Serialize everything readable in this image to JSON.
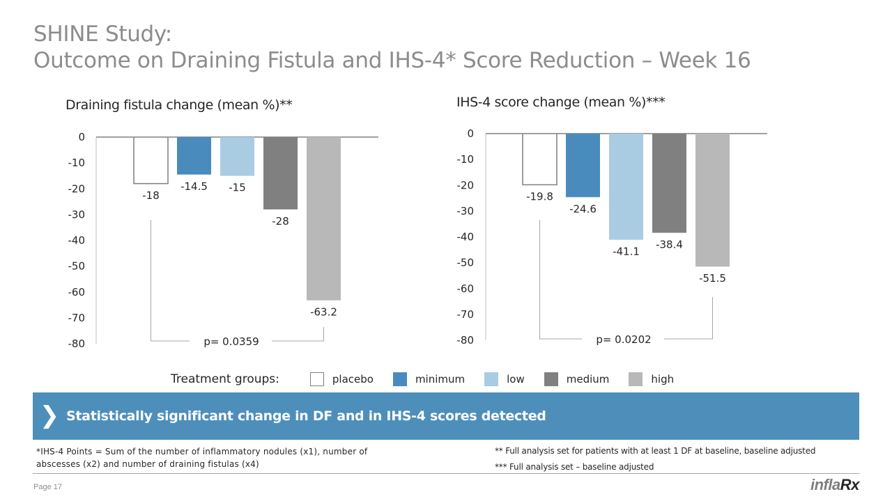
{
  "slide": {
    "title_line1": "SHINE Study:",
    "title_line2": "Outcome on Draining Fistula and IHS-4* Score Reduction – Week 16",
    "page_label": "Page 17",
    "logo_left": "infla",
    "logo_right": "Rx"
  },
  "colors": {
    "placebo_fill": "#ffffff",
    "placebo_stroke": "#7f7f7f",
    "minimum": "#4a8bbd",
    "low": "#a9cce3",
    "medium": "#808080",
    "high": "#b8b8b8",
    "banner": "#4d8fba"
  },
  "legend": {
    "title": "Treatment groups:",
    "items": [
      {
        "label": "placebo",
        "key": "placebo"
      },
      {
        "label": "minimum",
        "key": "minimum"
      },
      {
        "label": "low",
        "key": "low"
      },
      {
        "label": "medium",
        "key": "medium"
      },
      {
        "label": "high",
        "key": "high"
      }
    ]
  },
  "banner": {
    "icon": "chevron-right-icon",
    "text": "Statistically significant change in DF and in IHS-4  scores detected"
  },
  "footnotes": {
    "left": "*IHS-4 Points = Sum  of the number of inflammatory nodules (x1), number of abscesses (x2) and number of draining fistulas (x4)",
    "right1": "** Full analysis set for patients with at least 1 DF at baseline, baseline adjusted",
    "right2": "*** Full analysis set – baseline adjusted"
  },
  "chart_data": [
    {
      "type": "bar",
      "title": "Draining fistula change (mean %)**",
      "categories": [
        "placebo",
        "minimum",
        "low",
        "medium",
        "high"
      ],
      "values": [
        -18,
        -14.5,
        -15,
        -28,
        -63.2
      ],
      "data_labels": [
        "-18",
        "-14.5",
        "-15",
        "-28",
        "-63.2"
      ],
      "ylim": [
        -80,
        0
      ],
      "yticks": [
        "0",
        "-10",
        "-20",
        "-30",
        "-40",
        "-50",
        "-60",
        "-70",
        "-80"
      ],
      "xlabel": "",
      "ylabel": "",
      "grid": false,
      "annotation": {
        "text": "p= 0.0359",
        "between": [
          "placebo",
          "high"
        ]
      }
    },
    {
      "type": "bar",
      "title": "IHS-4 score change (mean %)***",
      "categories": [
        "placebo",
        "minimum",
        "low",
        "medium",
        "high"
      ],
      "values": [
        -19.8,
        -24.6,
        -41.1,
        -38.4,
        -51.5
      ],
      "data_labels": [
        "-19.8",
        "-24.6",
        "-41.1",
        "-38.4",
        "-51.5"
      ],
      "ylim": [
        -80,
        0
      ],
      "yticks": [
        "0",
        "-10",
        "-20",
        "-30",
        "-40",
        "-50",
        "-60",
        "-70",
        "-80"
      ],
      "xlabel": "",
      "ylabel": "",
      "grid": false,
      "annotation": {
        "text": "p= 0.0202",
        "between": [
          "placebo",
          "high"
        ]
      }
    }
  ]
}
